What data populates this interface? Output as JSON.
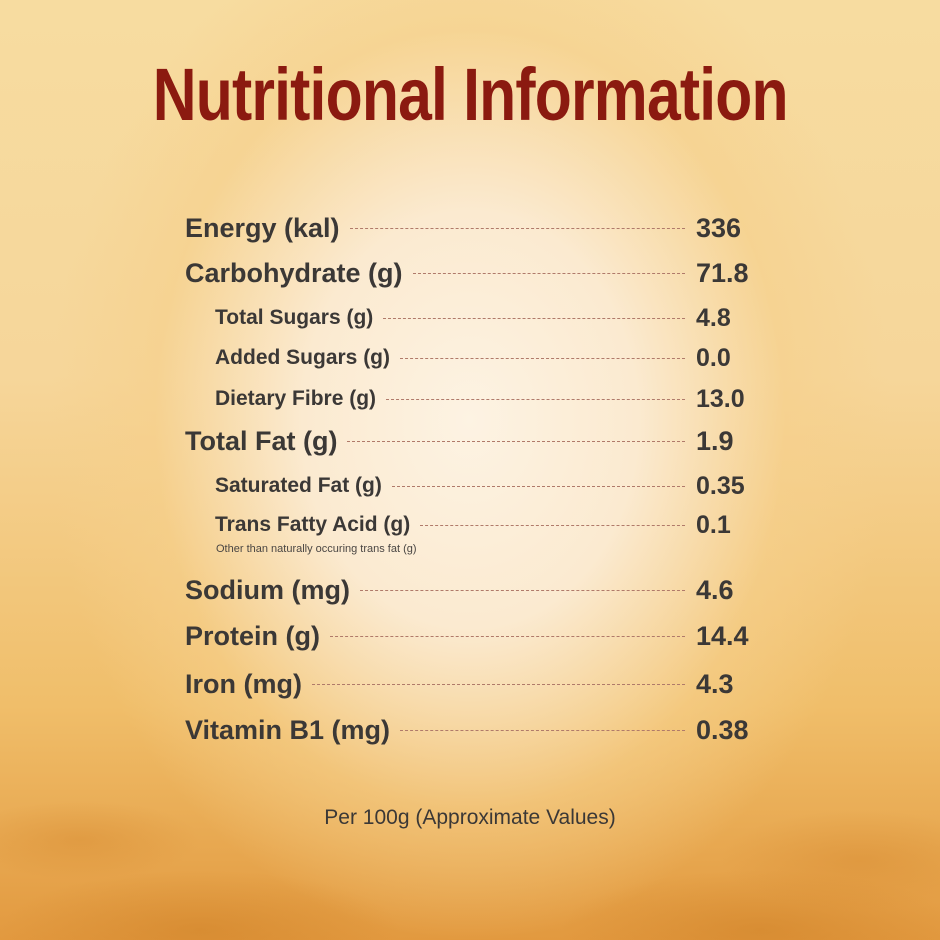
{
  "title": "Nutritional Information",
  "rows": [
    {
      "label": "Energy (kal)",
      "value": "336"
    },
    {
      "label": "Carbohydrate (g)",
      "value": "71.8"
    },
    {
      "label": "Total Sugars (g)",
      "value": "4.8"
    },
    {
      "label": "Added Sugars (g)",
      "value": "0.0"
    },
    {
      "label": "Dietary Fibre (g)",
      "value": "13.0"
    },
    {
      "label": "Total Fat (g)",
      "value": "1.9"
    },
    {
      "label": "Saturated Fat (g)",
      "value": "0.35"
    },
    {
      "label": "Trans Fatty Acid (g)",
      "value": "0.1"
    },
    {
      "label": "Sodium (mg)",
      "value": "4.6"
    },
    {
      "label": "Protein (g)",
      "value": "14.4"
    },
    {
      "label": "Iron (mg)",
      "value": "4.3"
    },
    {
      "label": "Vitamin B1 (mg)",
      "value": "0.38"
    }
  ],
  "trans_fat_note": "Other than naturally occuring trans fat (g)",
  "footer": "Per 100g (Approximate Values)",
  "colors": {
    "title": "#8b1a10",
    "text": "#3b3836"
  }
}
